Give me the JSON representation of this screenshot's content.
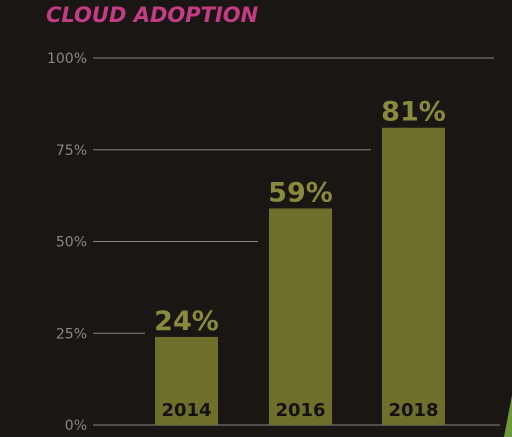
{
  "colors": {
    "background": "#1a1614",
    "title": "#c23c86",
    "bar": "#6f6f2c",
    "data_label": "#888a3c",
    "category_label": "#141210",
    "gridline": "#8a8683",
    "tick_label": "#8a8683",
    "accent": "#6a9a3a"
  },
  "chart_data": {
    "type": "bar",
    "title": "CLOUD ADOPTION",
    "categories": [
      "2014",
      "2016",
      "2018"
    ],
    "values": [
      24,
      59,
      81
    ],
    "data_labels": [
      "24%",
      "59%",
      "81%"
    ],
    "yticks": [
      0,
      25,
      50,
      75,
      100
    ],
    "ytick_labels": [
      "0%",
      "25%",
      "50%",
      "75%",
      "100%"
    ],
    "ylim": [
      0,
      100
    ],
    "xlabel": "",
    "ylabel": "",
    "grid": true,
    "legend": "none"
  }
}
